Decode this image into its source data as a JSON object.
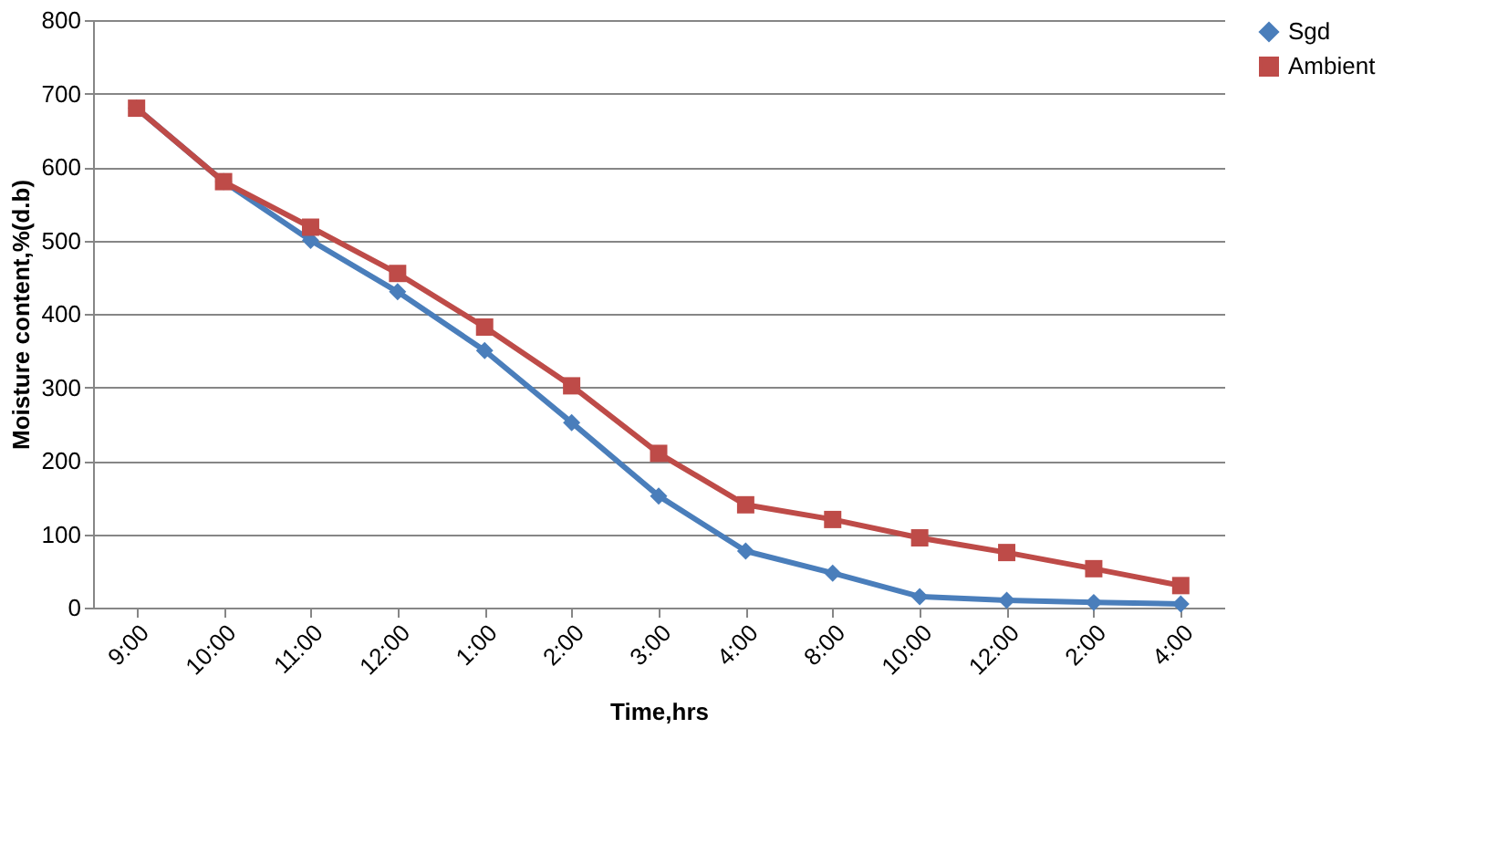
{
  "chart_data": {
    "type": "line",
    "xlabel": "Time,hrs",
    "ylabel": "Moisture content,%(d.b)",
    "categories": [
      "9:00",
      "10:00",
      "11:00",
      "12:00",
      "1:00",
      "2:00",
      "3:00",
      "4:00",
      "8:00",
      "10:00",
      "12:00",
      "2:00",
      "4:00"
    ],
    "series": [
      {
        "name": "Sgd",
        "color": "#4a7ebb",
        "marker": "diamond",
        "values": [
          680,
          580,
          500,
          430,
          350,
          252,
          152,
          77,
          47,
          15,
          10,
          7,
          5
        ]
      },
      {
        "name": "Ambient",
        "color": "#be4b48",
        "marker": "square",
        "values": [
          680,
          580,
          518,
          455,
          382,
          302,
          210,
          140,
          120,
          95,
          75,
          53,
          30
        ]
      }
    ],
    "ylim": [
      0,
      800
    ],
    "yticks": [
      0,
      100,
      200,
      300,
      400,
      500,
      600,
      700,
      800
    ],
    "grid": "y",
    "legend": "right",
    "line_style": "solid"
  }
}
